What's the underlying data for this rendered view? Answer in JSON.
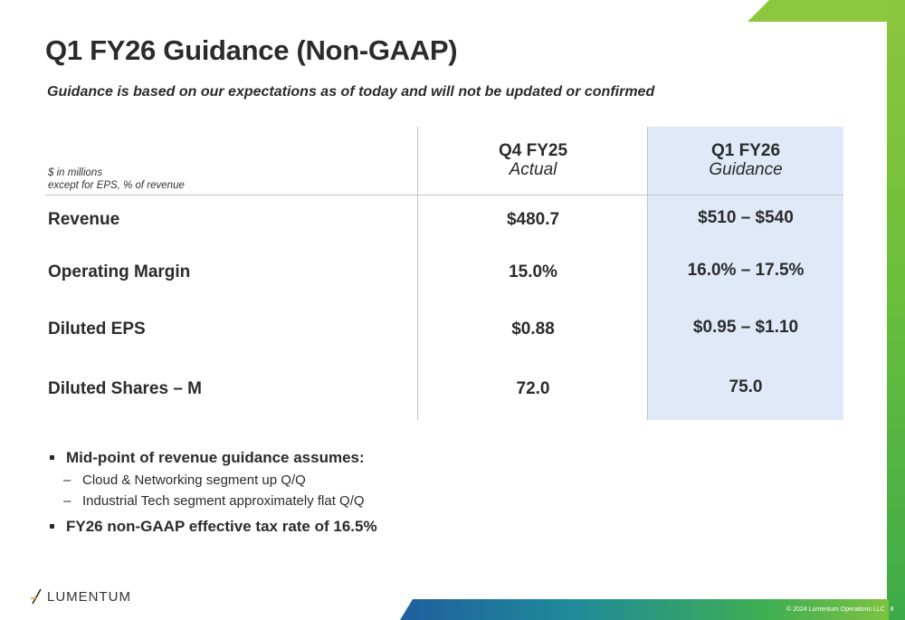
{
  "title": "Q1 FY26 Guidance (Non-GAAP)",
  "subtitle": "Guidance is based on our expectations as of today and will not be updated or confirmed",
  "table": {
    "units_line1": "$ in millions",
    "units_line2": "except for EPS, % of revenue",
    "col1": {
      "period": "Q4 FY25",
      "type": "Actual"
    },
    "col2": {
      "period": "Q1 FY26",
      "type": "Guidance"
    },
    "rows": [
      {
        "label": "Revenue",
        "actual": "$480.7",
        "guidance": "$510 – $540"
      },
      {
        "label": "Operating Margin",
        "actual": "15.0%",
        "guidance": "16.0% – 17.5%"
      },
      {
        "label": "Diluted EPS",
        "actual": "$0.88",
        "guidance": "$0.95 – $1.10"
      },
      {
        "label": "Diluted Shares – M",
        "actual": "72.0",
        "guidance": "75.0"
      }
    ]
  },
  "bullets": {
    "main1": "Mid-point of revenue guidance assumes:",
    "sub1": "Cloud & Networking segment up Q/Q",
    "sub2": "Industrial Tech segment approximately flat Q/Q",
    "main2": "FY26 non-GAAP effective tax rate of 16.5%"
  },
  "logo": {
    "text": "LUMENTUM"
  },
  "footer": {
    "copyright": "© 2024 Lumentum Operations LLC",
    "page": "8"
  },
  "colors": {
    "accent_green": "#8dc63f",
    "highlight_blue": "#dfe9f8",
    "logo_orange": "#f29a1f"
  }
}
